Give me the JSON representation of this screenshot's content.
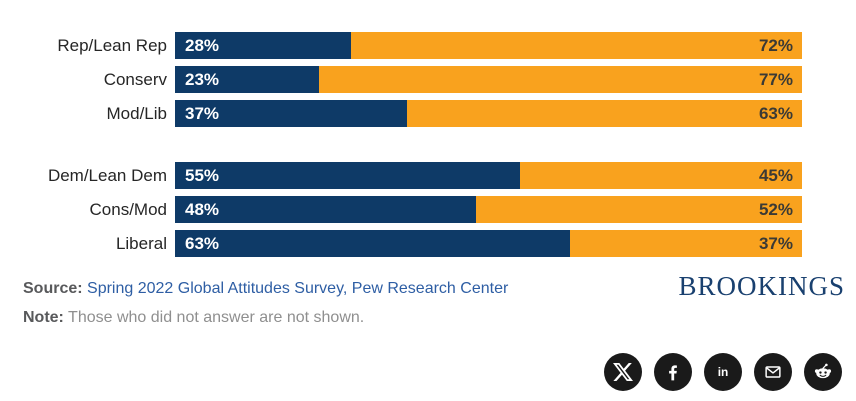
{
  "chart_data": {
    "type": "bar",
    "orientation": "horizontal-stacked",
    "categories": [
      "Rep/Lean Rep",
      "Conserv",
      "Mod/Lib",
      "Dem/Lean Dem",
      "Cons/Mod",
      "Liberal"
    ],
    "series": [
      {
        "name": "left-segment",
        "color": "#0E3A67",
        "values": [
          28,
          23,
          37,
          55,
          48,
          63
        ]
      },
      {
        "name": "right-segment",
        "color": "#F9A21E",
        "values": [
          72,
          77,
          63,
          45,
          52,
          37
        ]
      }
    ],
    "row_groups": [
      [
        0,
        1,
        2
      ],
      [
        3,
        4,
        5
      ]
    ],
    "value_suffix": "%",
    "xlim": [
      0,
      100
    ],
    "title": "",
    "legend": "none",
    "grid": false
  },
  "footer": {
    "source_label": "Source:",
    "source_text": "Spring 2022 Global Attitudes Survey, Pew Research Center",
    "note_label": "Note:",
    "note_text": "Those who did not answer are not shown.",
    "logo_text": "BROOKINGS"
  },
  "social": {
    "icons": [
      "x",
      "facebook",
      "linkedin",
      "email",
      "reddit"
    ]
  },
  "colors": {
    "navy": "#0E3A67",
    "orange": "#F9A21E",
    "link_blue": "#2E5EA4",
    "logo_navy": "#19406F",
    "icon_black": "#1A1A1A"
  }
}
